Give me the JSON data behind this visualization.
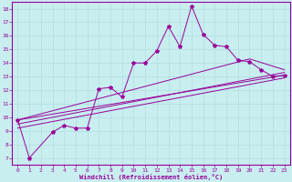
{
  "xlabel": "Windchill (Refroidissement éolien,°C)",
  "background_color": "#c8eef0",
  "grid_color": "#b0dde0",
  "line_color": "#990099",
  "xlim": [
    -0.5,
    23.5
  ],
  "ylim": [
    6.5,
    18.5
  ],
  "xticks": [
    0,
    1,
    2,
    3,
    4,
    5,
    6,
    7,
    8,
    9,
    10,
    11,
    12,
    13,
    14,
    15,
    16,
    17,
    18,
    19,
    20,
    21,
    22,
    23
  ],
  "yticks": [
    7,
    8,
    9,
    10,
    11,
    12,
    13,
    14,
    15,
    16,
    17,
    18
  ],
  "main_x": [
    0,
    1,
    3,
    4,
    5,
    6,
    7,
    8,
    9,
    10,
    11,
    12,
    13,
    14,
    15,
    16,
    17,
    18,
    19,
    20,
    21,
    22,
    23
  ],
  "main_y": [
    9.8,
    7.0,
    8.9,
    9.4,
    9.2,
    9.2,
    12.1,
    12.2,
    11.5,
    14.0,
    14.0,
    14.9,
    16.7,
    15.2,
    18.2,
    16.1,
    15.3,
    15.2,
    14.2,
    14.1,
    13.5,
    13.0,
    13.1
  ],
  "trend1_x": [
    0,
    23
  ],
  "trend1_y": [
    9.8,
    13.1
  ],
  "trend2_x": [
    0,
    23
  ],
  "trend2_y": [
    9.5,
    13.3
  ],
  "trend3_x": [
    0,
    23
  ],
  "trend3_y": [
    9.2,
    12.9
  ],
  "trend4_x": [
    0,
    20,
    23
  ],
  "trend4_y": [
    9.8,
    14.3,
    13.5
  ]
}
